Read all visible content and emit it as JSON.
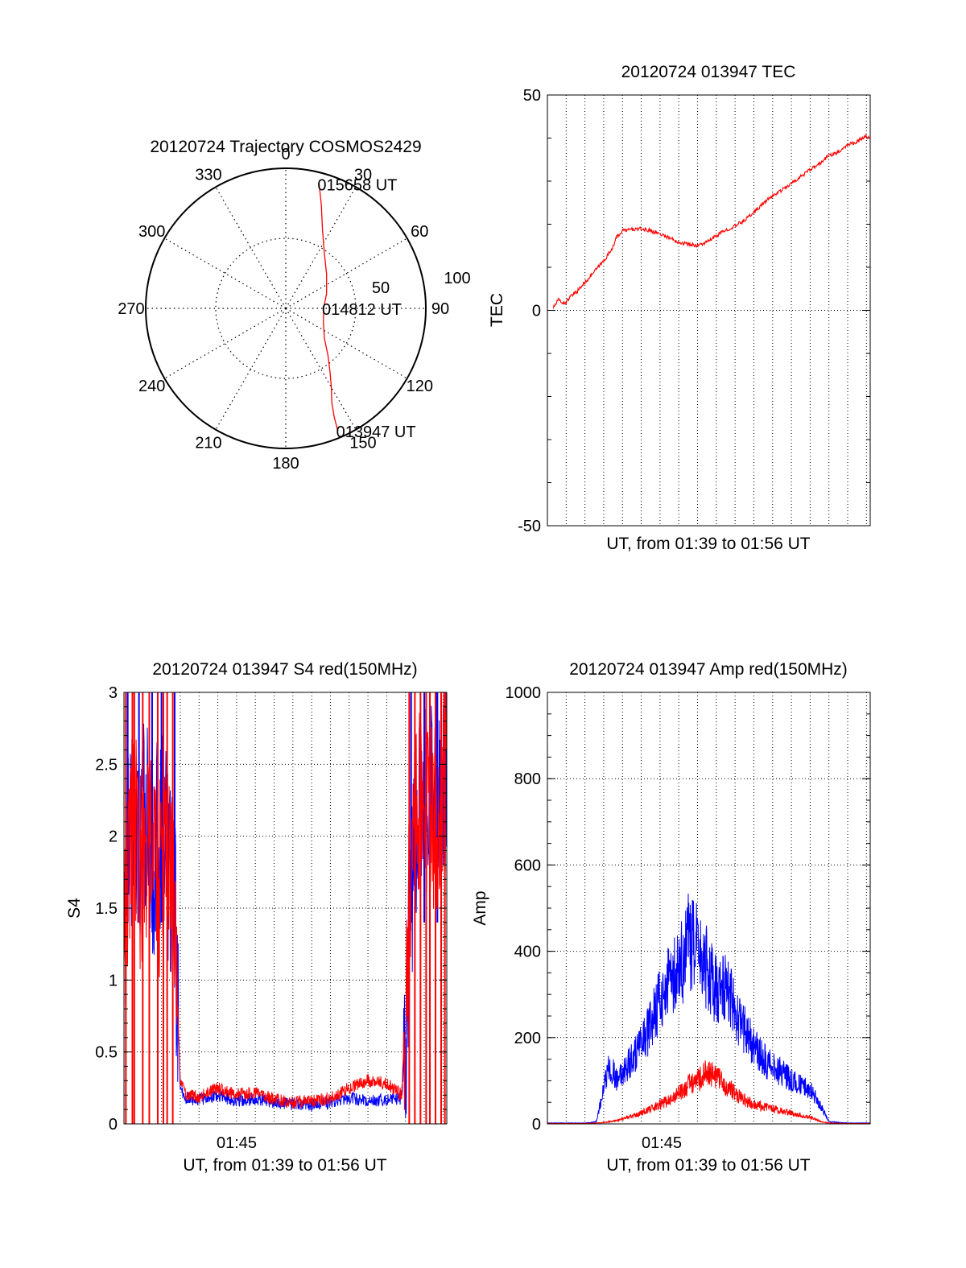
{
  "colors": {
    "red": "#ff0000",
    "blue": "#0000ff",
    "axis": "#000000",
    "grid": "#000000"
  },
  "chart_data": [
    {
      "id": "trajectory",
      "type": "polar",
      "title": "20120724 Trajectory COSMOS2429",
      "angle_labels": [
        "0",
        "30",
        "60",
        "90",
        "120",
        "150",
        "180",
        "210",
        "240",
        "270",
        "300",
        "330"
      ],
      "radial_labels": [
        "50",
        "100"
      ],
      "rmax": 100,
      "grid": true,
      "trajectory": {
        "azimuth_deg": [
          157,
          156,
          154,
          150,
          145,
          138,
          128,
          112,
          90,
          70,
          50,
          35,
          25,
          19,
          15
        ],
        "zenith_deg": [
          95,
          85,
          75,
          65,
          55,
          45,
          35,
          29,
          27,
          31,
          38,
          48,
          62,
          78,
          92
        ]
      },
      "annotations": [
        {
          "text": "015658 UT",
          "azimuth_deg": 15,
          "zenith_deg": 92
        },
        {
          "text": "014812 UT",
          "azimuth_deg": 90,
          "zenith_deg": 27
        },
        {
          "text": "013947 UT",
          "azimuth_deg": 157,
          "zenith_deg": 95
        }
      ]
    },
    {
      "id": "tec",
      "type": "line",
      "title": "20120724 013947 TEC",
      "xlabel": "UT, from 01:39 to 01:56 UT",
      "ylabel": "TEC",
      "xlim": [
        0,
        17.2
      ],
      "ylim": [
        -50,
        50
      ],
      "yticks": [
        "50",
        "0",
        "-50"
      ],
      "x": [
        0.3,
        0.6,
        0.9,
        1.2,
        1.6,
        2.0,
        2.5,
        3.0,
        3.4,
        3.7,
        4.0,
        4.5,
        5.0,
        5.5,
        6.0,
        6.5,
        7.0,
        7.5,
        8.0,
        8.5,
        9.0,
        9.5,
        10.0,
        10.5,
        11.0,
        11.5,
        12.0,
        12.5,
        13.0,
        13.5,
        14.0,
        14.5,
        15.0,
        15.5,
        16.0,
        16.5,
        17.0,
        17.2
      ],
      "series": [
        {
          "color": "red",
          "values": [
            0.5,
            2.5,
            1.5,
            3.0,
            4.5,
            6.5,
            9.0,
            11.5,
            14.0,
            17.0,
            18.5,
            18.8,
            18.9,
            18.5,
            17.8,
            16.8,
            15.9,
            15.3,
            15.1,
            15.8,
            17.3,
            18.6,
            19.6,
            20.9,
            22.8,
            24.8,
            26.6,
            28.0,
            29.4,
            31.1,
            32.6,
            34.0,
            36.0,
            36.8,
            38.5,
            39.2,
            40.4,
            40.0
          ]
        }
      ]
    },
    {
      "id": "s4",
      "type": "line",
      "title": "20120724 013947 S4 red(150MHz)",
      "xlabel": "UT, from 01:39 to 01:56 UT",
      "ylabel": "S4",
      "xtick_label": "01:45",
      "xlim": [
        0,
        17.2
      ],
      "ylim": [
        0,
        3
      ],
      "yticks": [
        "0",
        "0.5",
        "1",
        "1.5",
        "2",
        "2.5",
        "3"
      ],
      "x": [
        0.0,
        0.3,
        0.6,
        0.9,
        1.2,
        1.5,
        1.8,
        2.1,
        2.4,
        2.7,
        2.8,
        3.0,
        3.3,
        4.0,
        5.0,
        6.0,
        7.0,
        8.0,
        9.0,
        10.0,
        11.0,
        12.0,
        13.0,
        14.0,
        14.8,
        15.0,
        15.2,
        15.5,
        16.0,
        16.5,
        17.0,
        17.2
      ],
      "series": [
        {
          "color": "blue",
          "values": [
            1.4,
            2.1,
            1.9,
            2.0,
            2.2,
            1.8,
            2.0,
            2.1,
            1.7,
            1.5,
            1.1,
            0.25,
            0.18,
            0.17,
            0.2,
            0.16,
            0.18,
            0.15,
            0.14,
            0.13,
            0.15,
            0.18,
            0.16,
            0.17,
            0.18,
            0.6,
            1.4,
            2.0,
            2.2,
            2.5,
            2.3,
            2.5
          ]
        },
        {
          "color": "red",
          "values": [
            1.4,
            1.8,
            2.1,
            1.7,
            1.9,
            2.0,
            1.6,
            1.9,
            1.8,
            1.4,
            1.0,
            0.3,
            0.2,
            0.19,
            0.25,
            0.2,
            0.22,
            0.17,
            0.15,
            0.16,
            0.18,
            0.25,
            0.3,
            0.28,
            0.2,
            0.8,
            1.6,
            2.1,
            2.3,
            2.0,
            2.4,
            2.6
          ]
        }
      ]
    },
    {
      "id": "amp",
      "type": "line",
      "title": "20120724 013947 Amp red(150MHz)",
      "xlabel": "UT, from 01:39 to 01:56 UT",
      "ylabel": "Amp",
      "xtick_label": "01:45",
      "xlim": [
        0,
        17.2
      ],
      "ylim": [
        0,
        1000
      ],
      "yticks": [
        "0",
        "200",
        "400",
        "600",
        "800",
        "1000"
      ],
      "x": [
        0.0,
        1.0,
        2.0,
        2.6,
        3.0,
        3.3,
        3.7,
        4.0,
        4.5,
        5.0,
        5.5,
        6.0,
        6.5,
        7.0,
        7.5,
        8.0,
        8.5,
        9.0,
        9.5,
        10.0,
        10.5,
        11.0,
        11.5,
        12.0,
        12.5,
        13.0,
        13.5,
        14.0,
        14.3,
        14.6,
        15.0,
        16.0,
        17.2
      ],
      "series": [
        {
          "color": "blue",
          "values": [
            2,
            2,
            2,
            5,
            80,
            140,
            100,
            120,
            150,
            180,
            230,
            290,
            330,
            350,
            420,
            400,
            360,
            310,
            330,
            260,
            220,
            180,
            150,
            130,
            120,
            100,
            90,
            80,
            60,
            40,
            5,
            2,
            2
          ]
        },
        {
          "color": "red",
          "values": [
            1,
            1,
            1,
            2,
            3,
            5,
            8,
            12,
            18,
            25,
            35,
            45,
            55,
            70,
            90,
            100,
            120,
            110,
            90,
            70,
            55,
            45,
            40,
            35,
            30,
            25,
            20,
            15,
            10,
            5,
            2,
            1,
            1
          ]
        }
      ]
    }
  ]
}
